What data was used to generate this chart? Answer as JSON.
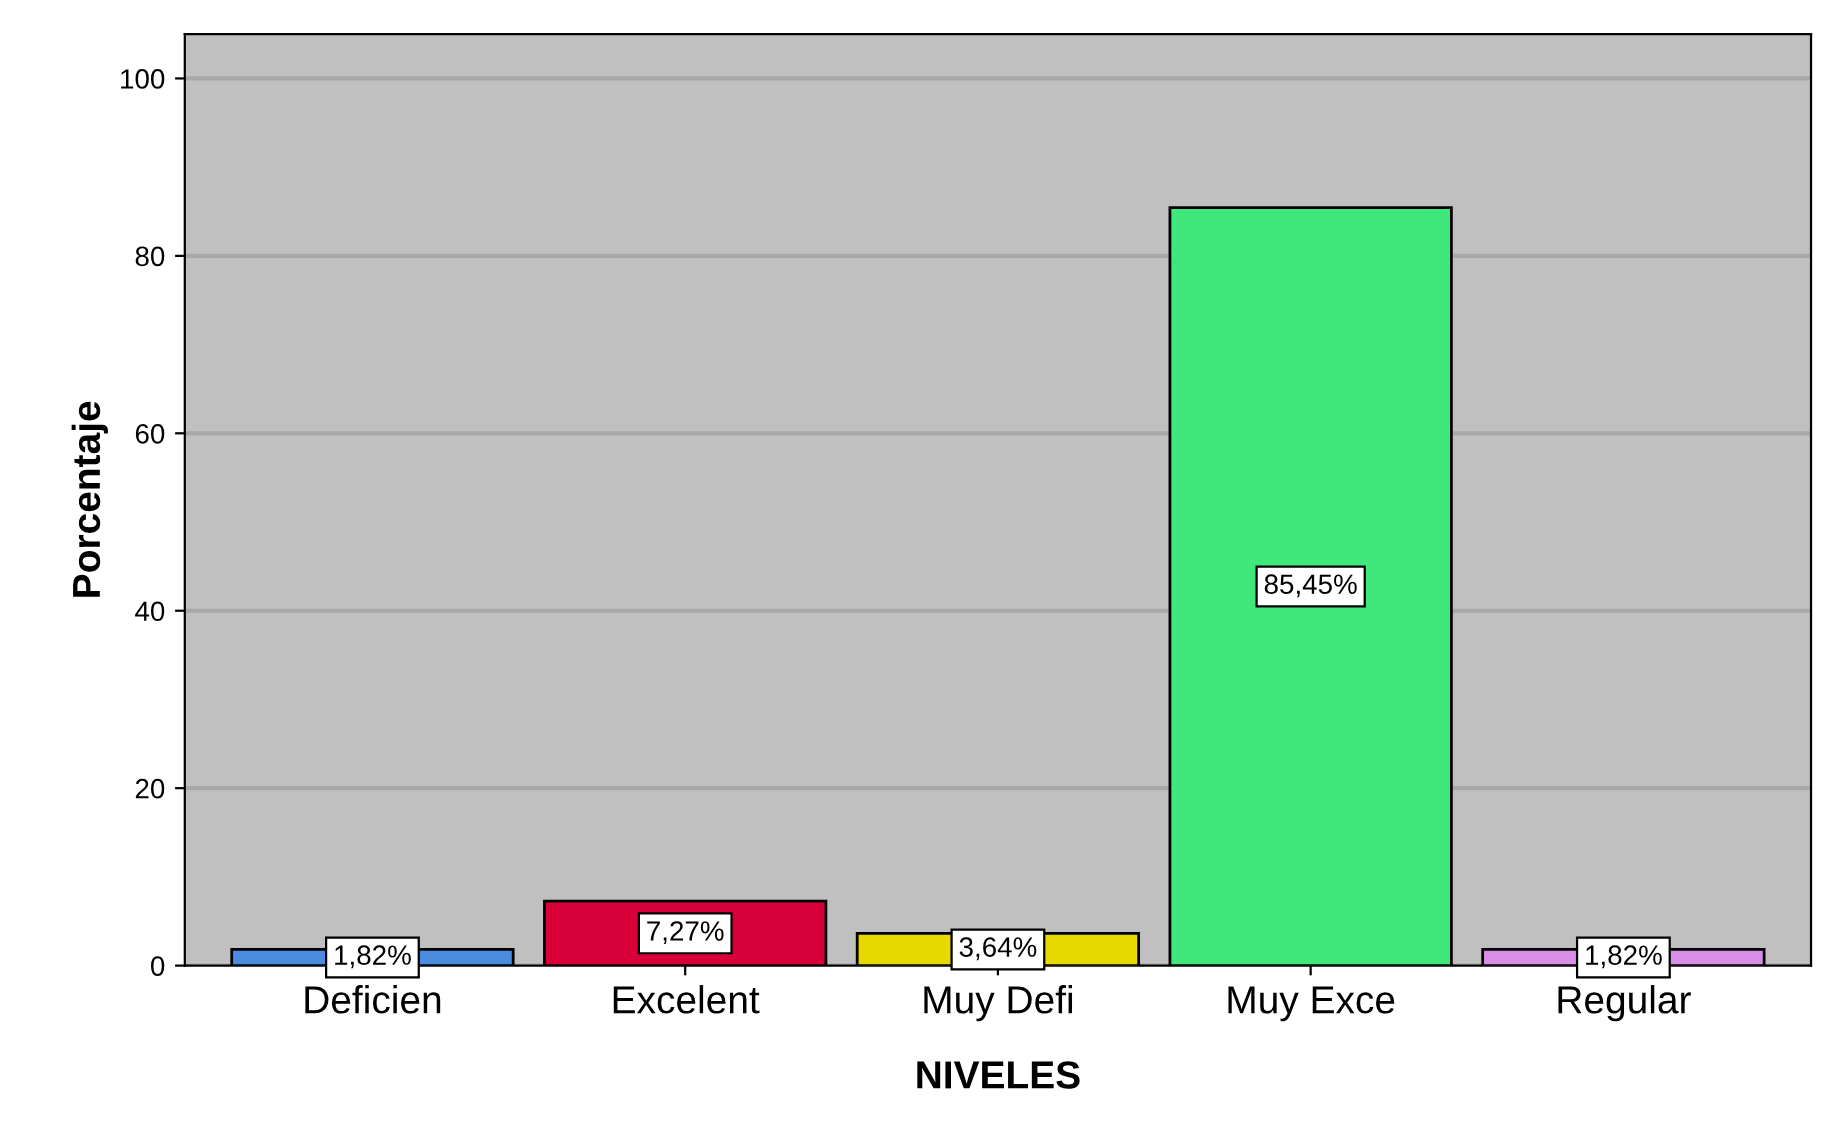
{
  "chart_data": {
    "type": "bar",
    "xlabel": "NIVELES",
    "ylabel": "Porcentaje",
    "categories": [
      "Deficien",
      "Excelent",
      "Muy Defi",
      "Muy Exce",
      "Regular"
    ],
    "values": [
      1.82,
      7.27,
      3.64,
      85.45,
      1.82
    ],
    "colors": [
      "#4a8de0",
      "#d9003a",
      "#e6d800",
      "#40e87c",
      "#d98ee8"
    ],
    "value_labels": [
      "1,82%",
      "7,27%",
      "3,64%",
      "85,45%",
      "1,82%"
    ],
    "ylim": [
      0,
      105
    ],
    "yticks": [
      0,
      20,
      40,
      60,
      80,
      100
    ],
    "grid": "y"
  }
}
